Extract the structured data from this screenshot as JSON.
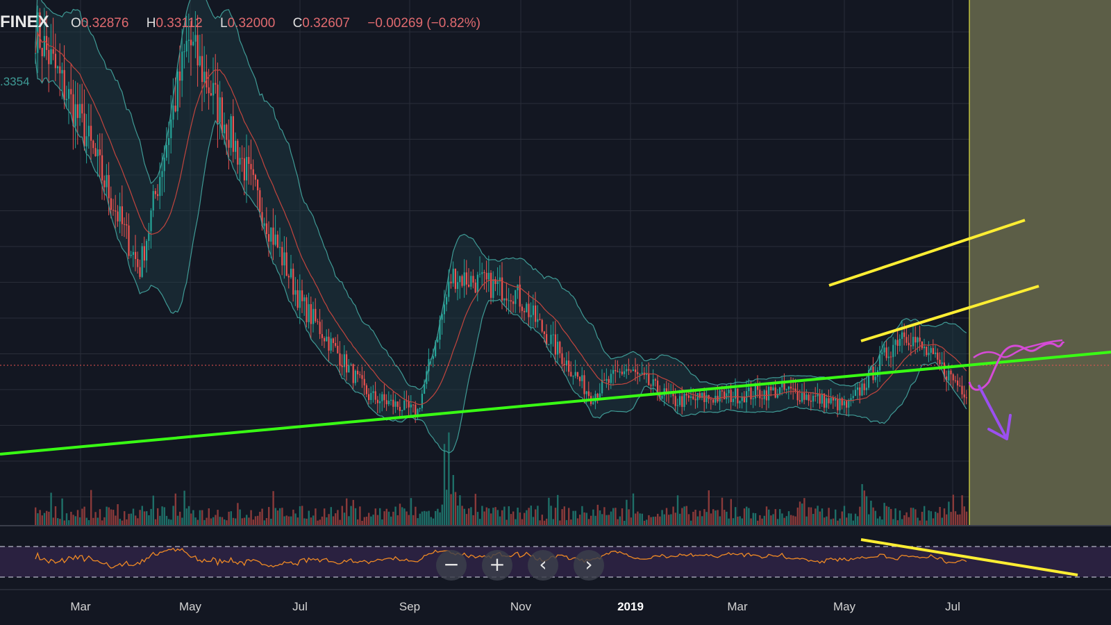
{
  "header": {
    "symbol": "FINEX",
    "open_key": "O",
    "open_val": "0.32876",
    "high_key": "H",
    "high_val": "0.33112",
    "low_key": "L",
    "low_val": "0.32000",
    "close_key": "C",
    "close_val": "0.32607",
    "change": "−0.00269 (−0.82%)"
  },
  "bb_value": ".3354",
  "controls": {
    "zoom_out": "−",
    "zoom_in": "+",
    "scroll_left": "‹",
    "scroll_right": "›"
  },
  "colors": {
    "background": "#131722",
    "grid": "#2a2e39",
    "bull": "#26a69a",
    "bear": "#ef5350",
    "bb_band": "#3f9b96",
    "ma": "#c2453e",
    "support_line": "#39ff14",
    "channel_lines": "#ffee33",
    "forecast_zone": "#5c5e47",
    "rsi_line": "#f08a24",
    "drawing": "#d54bd6",
    "arrow": "#9b4ff0"
  },
  "chart_data": {
    "type": "candlestick",
    "x_axis_ticks": [
      "Mar",
      "May",
      "Jul",
      "Sep",
      "Nov",
      "2019",
      "Mar",
      "May",
      "Jul"
    ],
    "x_axis_tick_bold": [
      false,
      false,
      false,
      false,
      false,
      true,
      false,
      false,
      false
    ],
    "last_close": 0.32607,
    "price_path_keyframes": [
      {
        "month": "Jan 2018",
        "price": 1.0
      },
      {
        "month": "Mar 2018",
        "price": 0.82
      },
      {
        "month": "Apr 2018",
        "price": 0.56
      },
      {
        "month": "May 2018",
        "price": 0.98
      },
      {
        "month": "Jun 2018",
        "price": 0.78
      },
      {
        "month": "Jul 2018",
        "price": 0.5
      },
      {
        "month": "Aug 2018",
        "price": 0.33
      },
      {
        "month": "Sep 2018",
        "price": 0.3
      },
      {
        "month": "Oct 2018",
        "price": 0.55
      },
      {
        "month": "Nov 2018",
        "price": 0.52
      },
      {
        "month": "Dec 2018",
        "price": 0.33
      },
      {
        "month": "Jan 2019",
        "price": 0.38
      },
      {
        "month": "Feb 2019",
        "price": 0.32
      },
      {
        "month": "Apr 2019",
        "price": 0.34
      },
      {
        "month": "May 2019",
        "price": 0.31
      },
      {
        "month": "Jun 2019",
        "price": 0.45
      },
      {
        "month": "Jul 2019",
        "price": 0.33
      }
    ],
    "indicators": [
      "Bollinger Bands",
      "Moving Average",
      "Volume",
      "RSI"
    ],
    "drawings": [
      "support trend line",
      "rising channel",
      "RSI divergence line",
      "forecast zone",
      "downward arrow"
    ],
    "grid": true
  }
}
